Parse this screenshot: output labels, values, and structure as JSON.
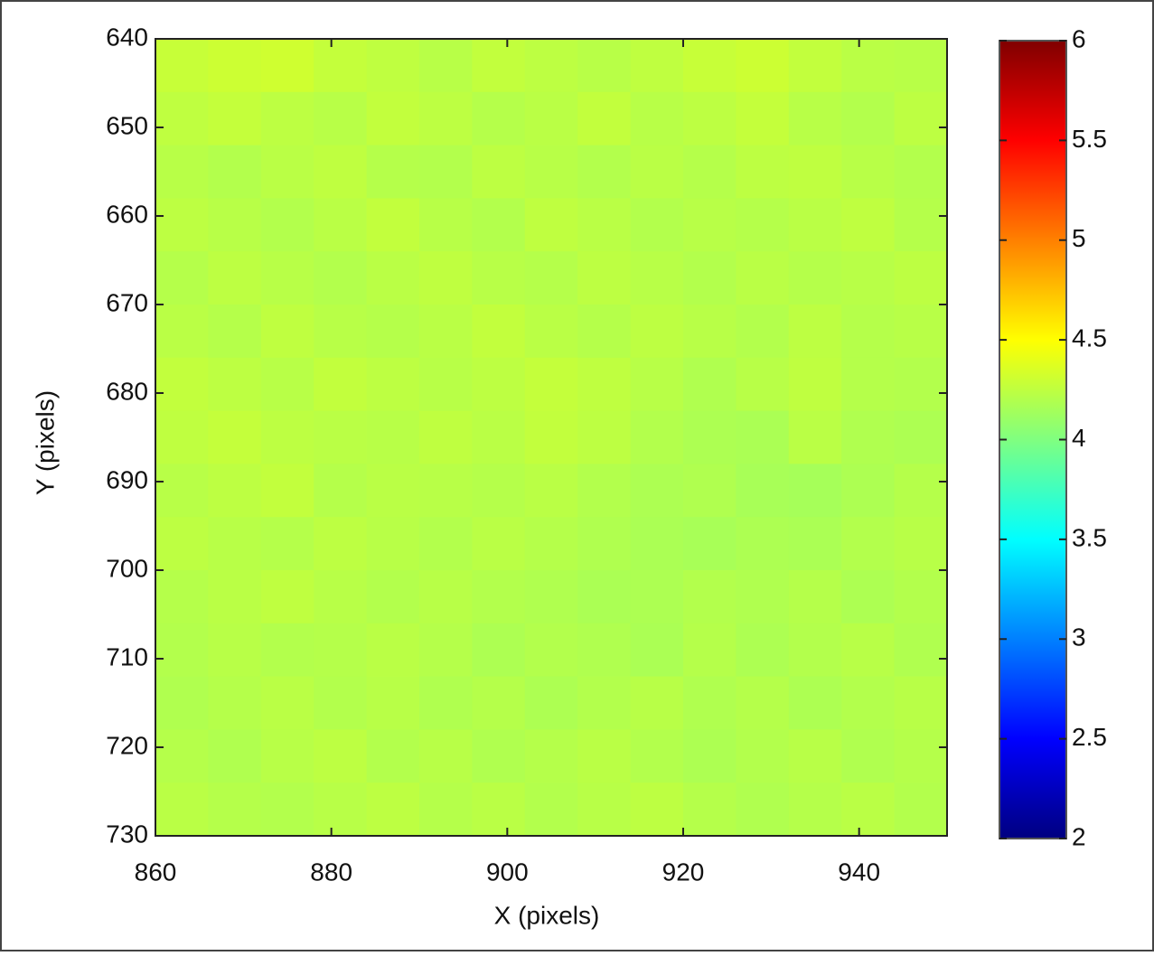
{
  "chart_data": {
    "type": "heatmap",
    "xlabel": "X (pixels)",
    "ylabel": "Y (pixels)",
    "xbins": [
      860,
      866,
      872,
      878,
      884,
      890,
      896,
      902,
      908,
      914,
      920,
      926,
      932,
      938,
      944,
      950
    ],
    "ybins": [
      640,
      646,
      652,
      658,
      664,
      670,
      676,
      682,
      688,
      694,
      700,
      706,
      712,
      718,
      724,
      730
    ],
    "values": [
      [
        4.28,
        4.3,
        4.31,
        4.27,
        4.25,
        4.22,
        4.26,
        4.24,
        4.22,
        4.25,
        4.28,
        4.3,
        4.26,
        4.23,
        4.22
      ],
      [
        4.25,
        4.27,
        4.24,
        4.22,
        4.26,
        4.24,
        4.21,
        4.23,
        4.26,
        4.22,
        4.24,
        4.27,
        4.22,
        4.2,
        4.24
      ],
      [
        4.22,
        4.2,
        4.23,
        4.25,
        4.21,
        4.2,
        4.24,
        4.22,
        4.2,
        4.23,
        4.21,
        4.24,
        4.25,
        4.22,
        4.2
      ],
      [
        4.24,
        4.22,
        4.2,
        4.23,
        4.26,
        4.22,
        4.2,
        4.25,
        4.23,
        4.2,
        4.22,
        4.21,
        4.23,
        4.25,
        4.21
      ],
      [
        4.21,
        4.24,
        4.22,
        4.2,
        4.23,
        4.25,
        4.22,
        4.21,
        4.24,
        4.22,
        4.2,
        4.23,
        4.21,
        4.22,
        4.24
      ],
      [
        4.23,
        4.21,
        4.25,
        4.22,
        4.21,
        4.23,
        4.26,
        4.23,
        4.21,
        4.24,
        4.22,
        4.2,
        4.24,
        4.21,
        4.22
      ],
      [
        4.26,
        4.24,
        4.22,
        4.26,
        4.24,
        4.22,
        4.24,
        4.27,
        4.25,
        4.22,
        4.19,
        4.22,
        4.25,
        4.21,
        4.2
      ],
      [
        4.25,
        4.27,
        4.24,
        4.23,
        4.22,
        4.25,
        4.23,
        4.26,
        4.24,
        4.2,
        4.18,
        4.17,
        4.23,
        4.19,
        4.18
      ],
      [
        4.22,
        4.24,
        4.26,
        4.21,
        4.23,
        4.22,
        4.21,
        4.23,
        4.2,
        4.18,
        4.19,
        4.16,
        4.15,
        4.18,
        4.21
      ],
      [
        4.24,
        4.22,
        4.21,
        4.24,
        4.22,
        4.2,
        4.23,
        4.21,
        4.19,
        4.17,
        4.16,
        4.18,
        4.17,
        4.2,
        4.22
      ],
      [
        4.21,
        4.23,
        4.25,
        4.22,
        4.2,
        4.22,
        4.2,
        4.19,
        4.17,
        4.18,
        4.2,
        4.19,
        4.21,
        4.18,
        4.2
      ],
      [
        4.2,
        4.22,
        4.2,
        4.21,
        4.23,
        4.21,
        4.18,
        4.2,
        4.19,
        4.17,
        4.21,
        4.18,
        4.2,
        4.22,
        4.19
      ],
      [
        4.19,
        4.21,
        4.23,
        4.2,
        4.22,
        4.19,
        4.21,
        4.18,
        4.2,
        4.22,
        4.19,
        4.21,
        4.18,
        4.2,
        4.22
      ],
      [
        4.21,
        4.19,
        4.22,
        4.24,
        4.2,
        4.22,
        4.19,
        4.21,
        4.23,
        4.2,
        4.18,
        4.2,
        4.22,
        4.19,
        4.21
      ],
      [
        4.23,
        4.21,
        4.2,
        4.22,
        4.24,
        4.21,
        4.23,
        4.2,
        4.22,
        4.24,
        4.21,
        4.19,
        4.21,
        4.23,
        4.2
      ]
    ],
    "colormap": "jet",
    "xlim": [
      860,
      950
    ],
    "xticks": [
      860,
      880,
      900,
      920,
      940
    ],
    "ylim": [
      640,
      730
    ],
    "yticks": [
      640,
      650,
      660,
      670,
      680,
      690,
      700,
      710,
      720,
      730
    ],
    "clim": [
      2,
      6
    ],
    "cticks": [
      2,
      2.5,
      3,
      3.5,
      4,
      4.5,
      5,
      5.5,
      6
    ]
  }
}
